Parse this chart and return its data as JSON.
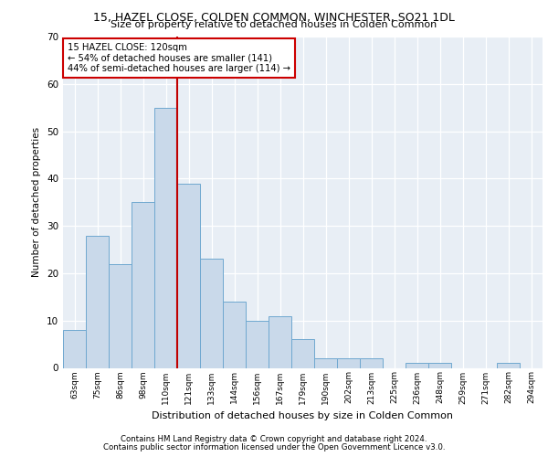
{
  "title1": "15, HAZEL CLOSE, COLDEN COMMON, WINCHESTER, SO21 1DL",
  "title2": "Size of property relative to detached houses in Colden Common",
  "xlabel": "Distribution of detached houses by size in Colden Common",
  "ylabel": "Number of detached properties",
  "bar_labels": [
    "63sqm",
    "75sqm",
    "86sqm",
    "98sqm",
    "110sqm",
    "121sqm",
    "133sqm",
    "144sqm",
    "156sqm",
    "167sqm",
    "179sqm",
    "190sqm",
    "202sqm",
    "213sqm",
    "225sqm",
    "236sqm",
    "248sqm",
    "259sqm",
    "271sqm",
    "282sqm",
    "294sqm"
  ],
  "bar_values": [
    8,
    28,
    22,
    35,
    55,
    39,
    23,
    14,
    10,
    11,
    6,
    2,
    2,
    2,
    0,
    1,
    1,
    0,
    0,
    1,
    0
  ],
  "bar_color": "#c9d9ea",
  "bar_edge_color": "#6fa8d0",
  "vline_color": "#c00000",
  "annotation_text": "15 HAZEL CLOSE: 120sqm\n← 54% of detached houses are smaller (141)\n44% of semi-detached houses are larger (114) →",
  "annotation_box_color": "#ffffff",
  "annotation_box_edge": "#cc0000",
  "ylim": [
    0,
    70
  ],
  "yticks": [
    0,
    10,
    20,
    30,
    40,
    50,
    60,
    70
  ],
  "footer1": "Contains HM Land Registry data © Crown copyright and database right 2024.",
  "footer2": "Contains public sector information licensed under the Open Government Licence v3.0.",
  "background_color": "#e8eef5",
  "grid_color": "#ffffff"
}
